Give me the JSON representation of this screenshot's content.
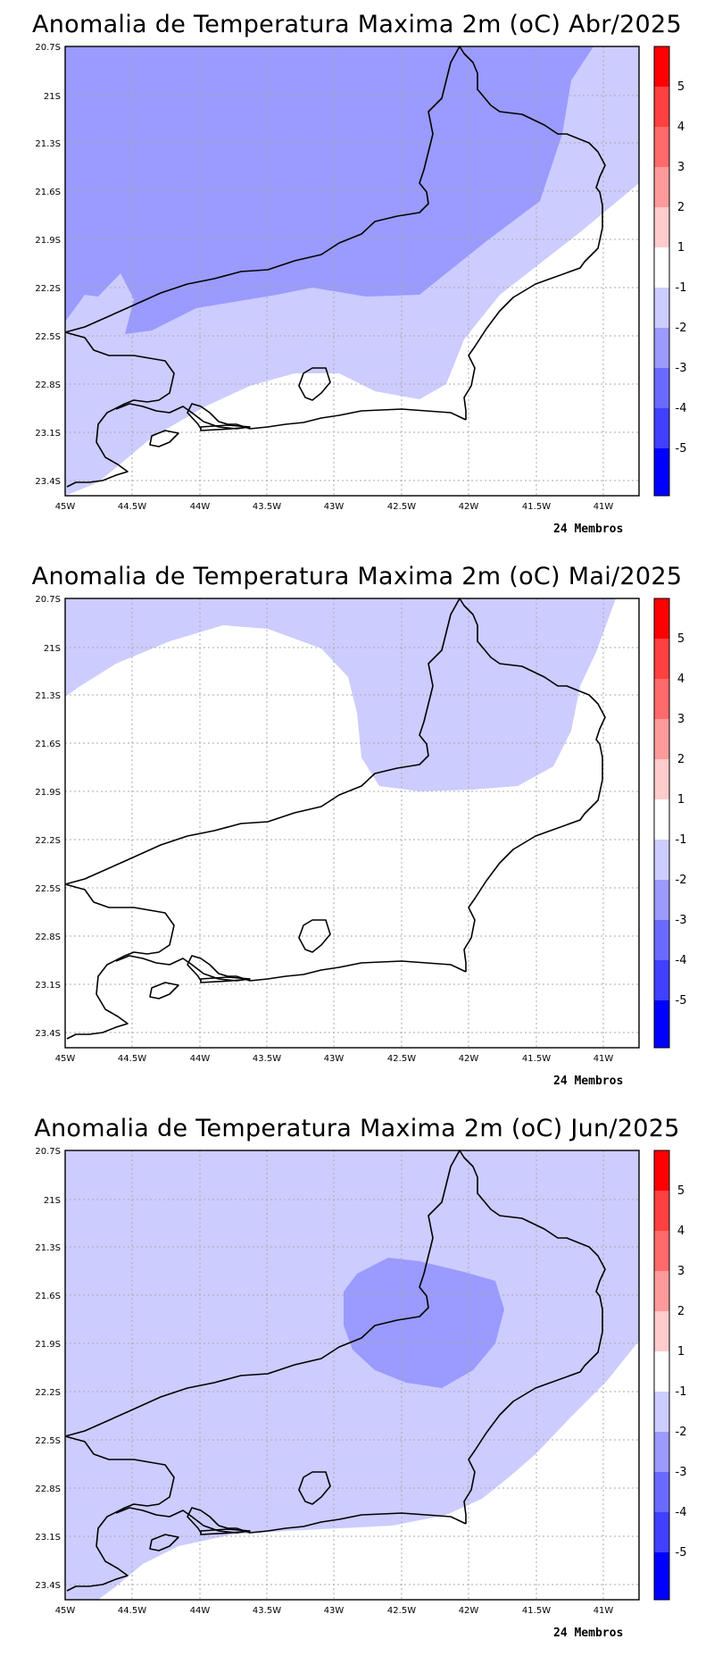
{
  "chart_data": [
    {
      "type": "map",
      "title": "Anomalia de Temperatura Maxima 2m (oC) Abr/2025",
      "footer": "24 Membros",
      "y_ticks": [
        "20.7S",
        "21S",
        "21.3S",
        "21.6S",
        "21.9S",
        "22.2S",
        "22.5S",
        "22.8S",
        "23.1S",
        "23.4S"
      ],
      "x_ticks": [
        "45W",
        "44.5W",
        "44W",
        "43.5W",
        "43W",
        "42.5W",
        "42W",
        "41.5W",
        "41W"
      ],
      "xlim": [
        -45,
        -40.75
      ],
      "ylim": [
        -23.5,
        -20.7
      ],
      "shading": "-1 to -3 (mostly -2 to -3 inland north, -1 to -2 south/east), near 0 along coast"
    },
    {
      "type": "map",
      "title": "Anomalia de Temperatura Maxima 2m (oC) Mai/2025",
      "footer": "24 Membros",
      "y_ticks": [
        "20.7S",
        "21S",
        "21.3S",
        "21.6S",
        "21.9S",
        "22.2S",
        "22.5S",
        "22.8S",
        "23.1S",
        "23.4S"
      ],
      "x_ticks": [
        "45W",
        "44.5W",
        "44W",
        "43.5W",
        "43W",
        "42.5W",
        "42W",
        "41.5W",
        "41W"
      ],
      "xlim": [
        -45,
        -40.75
      ],
      "ylim": [
        -23.5,
        -20.7
      ],
      "shading": "-1 to -2 in north, near 0 elsewhere"
    },
    {
      "type": "map",
      "title": "Anomalia de Temperatura Maxima 2m (oC) Jun/2025",
      "footer": "24 Membros",
      "y_ticks": [
        "20.7S",
        "21S",
        "21.3S",
        "21.6S",
        "21.9S",
        "22.2S",
        "22.5S",
        "22.8S",
        "23.1S",
        "23.4S"
      ],
      "x_ticks": [
        "45W",
        "44.5W",
        "44W",
        "43.5W",
        "43W",
        "42.5W",
        "42W",
        "41.5W",
        "41W"
      ],
      "xlim": [
        -45,
        -40.75
      ],
      "ylim": [
        -23.5,
        -20.7
      ],
      "shading": "-1 to -2 nearly everywhere, -2 to -3 core near 42.5W 21.8S"
    }
  ],
  "colorbar": {
    "labels": [
      "5",
      "4",
      "3",
      "2",
      "1",
      "-1",
      "-2",
      "-3",
      "-4",
      "-5"
    ],
    "colors": [
      "#ff0000",
      "#ff4040",
      "#ff6a6a",
      "#ff9a9a",
      "#ffcccc",
      "#ffffff",
      "#ccccff",
      "#9a9aff",
      "#6a6aff",
      "#4040ff",
      "#0000ff"
    ]
  },
  "palette": {
    "neg1": "#ccccff",
    "neg2": "#9a9aff"
  }
}
